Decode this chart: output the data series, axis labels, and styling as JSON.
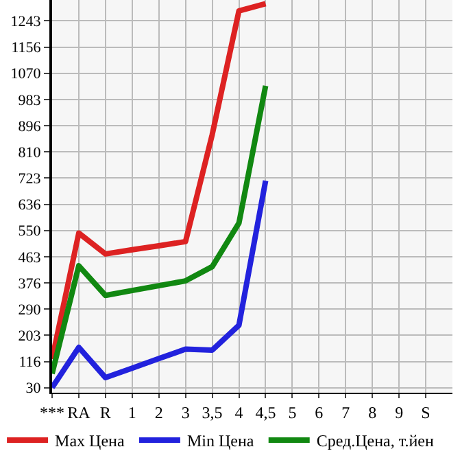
{
  "chart_data": {
    "type": "line",
    "categories": [
      "***",
      "RA",
      "R",
      "1",
      "2",
      "3",
      "3,5",
      "4",
      "4,5",
      "5",
      "6",
      "7",
      "8",
      "9",
      "S"
    ],
    "series": [
      {
        "name": "Max Цена",
        "color": "#dd2222",
        "values": [
          124,
          541,
          472,
          486,
          499,
          513,
          867,
          1276,
          1300,
          null,
          null,
          null,
          null,
          null,
          null
        ]
      },
      {
        "name": "Min Цена",
        "color": "#2222dd",
        "values": [
          30,
          163,
          63,
          94,
          126,
          157,
          154,
          236,
          714,
          null,
          null,
          null,
          null,
          null,
          null
        ]
      },
      {
        "name": "Сред.Цена, т.йен",
        "color": "#118811",
        "values": [
          76,
          433,
          335,
          351,
          367,
          383,
          430,
          574,
          1028,
          null,
          null,
          null,
          null,
          null,
          null
        ]
      }
    ],
    "ylim": [
      13,
      1312
    ],
    "yticks": [
      30,
      116,
      203,
      290,
      376,
      463,
      550,
      636,
      723,
      810,
      896,
      983,
      1070,
      1156,
      1243
    ],
    "grid": true,
    "legend": "bottom",
    "marker": "none",
    "line_style": "solid"
  }
}
